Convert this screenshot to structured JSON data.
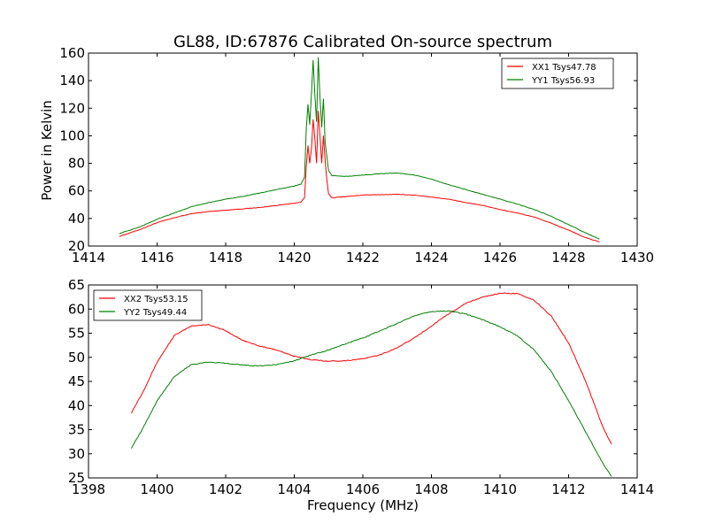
{
  "chart_data": [
    {
      "type": "line",
      "title": "GL88, ID:67876 Calibrated On-source spectrum",
      "xlabel": "",
      "ylabel": "Power in Kelvin",
      "xlim": [
        1414,
        1430
      ],
      "ylim": [
        20,
        160
      ],
      "xticks": [
        1414,
        1416,
        1418,
        1420,
        1422,
        1424,
        1426,
        1428,
        1430
      ],
      "yticks": [
        20,
        40,
        60,
        80,
        100,
        120,
        140,
        160
      ],
      "grid": false,
      "legend_position": "top-right",
      "series": [
        {
          "name": "XX1 Tsys47.78",
          "color": "#ff0000",
          "points": [
            [
              1414.9,
              27
            ],
            [
              1415.5,
              32
            ],
            [
              1416,
              37
            ],
            [
              1416.5,
              40.5
            ],
            [
              1417,
              43.5
            ],
            [
              1417.5,
              45
            ],
            [
              1418,
              46
            ],
            [
              1419,
              48
            ],
            [
              1419.5,
              49.5
            ],
            [
              1420,
              51
            ],
            [
              1420.2,
              52
            ],
            [
              1420.3,
              55
            ],
            [
              1420.35,
              78
            ],
            [
              1420.4,
              93
            ],
            [
              1420.45,
              80
            ],
            [
              1420.5,
              90
            ],
            [
              1420.55,
              112
            ],
            [
              1420.6,
              98
            ],
            [
              1420.65,
              80
            ],
            [
              1420.7,
              118
            ],
            [
              1420.75,
              100
            ],
            [
              1420.8,
              80
            ],
            [
              1420.85,
              100
            ],
            [
              1420.9,
              82
            ],
            [
              1420.95,
              68
            ],
            [
              1421,
              58
            ],
            [
              1421.1,
              55
            ],
            [
              1422,
              57
            ],
            [
              1423,
              57.5
            ],
            [
              1423.5,
              57
            ],
            [
              1424,
              55.5
            ],
            [
              1424.5,
              54
            ],
            [
              1425,
              51.5
            ],
            [
              1425.5,
              49.5
            ],
            [
              1426,
              46.5
            ],
            [
              1426.5,
              44
            ],
            [
              1427,
              41
            ],
            [
              1427.5,
              36.5
            ],
            [
              1428,
              31.5
            ],
            [
              1428.5,
              26
            ],
            [
              1428.9,
              23
            ]
          ]
        },
        {
          "name": "YY1 Tsys56.93",
          "color": "#008000",
          "points": [
            [
              1414.9,
              29
            ],
            [
              1415.5,
              34
            ],
            [
              1416,
              39.5
            ],
            [
              1416.5,
              44
            ],
            [
              1417,
              48.5
            ],
            [
              1417.5,
              51.5
            ],
            [
              1418,
              54
            ],
            [
              1418.5,
              56
            ],
            [
              1419,
              58.5
            ],
            [
              1419.5,
              61
            ],
            [
              1420,
              63.5
            ],
            [
              1420.2,
              65
            ],
            [
              1420.3,
              70
            ],
            [
              1420.35,
              105
            ],
            [
              1420.4,
              123
            ],
            [
              1420.45,
              108
            ],
            [
              1420.5,
              130
            ],
            [
              1420.55,
              155
            ],
            [
              1420.6,
              130
            ],
            [
              1420.65,
              110
            ],
            [
              1420.7,
              157
            ],
            [
              1420.75,
              128
            ],
            [
              1420.8,
              106
            ],
            [
              1420.85,
              127
            ],
            [
              1420.9,
              95
            ],
            [
              1420.95,
              85
            ],
            [
              1421,
              75
            ],
            [
              1421.1,
              71
            ],
            [
              1421.5,
              70.5
            ],
            [
              1422,
              71.5
            ],
            [
              1422.5,
              72.5
            ],
            [
              1423,
              73
            ],
            [
              1423.5,
              71.5
            ],
            [
              1424,
              68.5
            ],
            [
              1424.5,
              64.5
            ],
            [
              1425,
              61
            ],
            [
              1425.5,
              57.5
            ],
            [
              1426,
              54
            ],
            [
              1426.5,
              50.5
            ],
            [
              1427,
              46.5
            ],
            [
              1427.5,
              41.5
            ],
            [
              1428,
              35.5
            ],
            [
              1428.5,
              29.5
            ],
            [
              1428.9,
              25
            ]
          ]
        }
      ]
    },
    {
      "type": "line",
      "title": "",
      "xlabel": "Frequency (MHz)",
      "ylabel": "",
      "xlim": [
        1398,
        1414
      ],
      "ylim": [
        25,
        65
      ],
      "xticks": [
        1398,
        1400,
        1402,
        1404,
        1406,
        1408,
        1410,
        1412,
        1414
      ],
      "yticks": [
        25,
        30,
        35,
        40,
        45,
        50,
        55,
        60,
        65
      ],
      "grid": false,
      "legend_position": "top-left",
      "series": [
        {
          "name": "XX2 Tsys53.15",
          "color": "#ff0000",
          "points": [
            [
              1399.25,
              38.5
            ],
            [
              1399.6,
              43
            ],
            [
              1400,
              49
            ],
            [
              1400.5,
              54.5
            ],
            [
              1401,
              56.5
            ],
            [
              1401.5,
              56.8
            ],
            [
              1402,
              55.5
            ],
            [
              1402.5,
              53.5
            ],
            [
              1403,
              52.3
            ],
            [
              1403.5,
              51.5
            ],
            [
              1404,
              50.2
            ],
            [
              1404.5,
              49.5
            ],
            [
              1405,
              49.2
            ],
            [
              1405.5,
              49.3
            ],
            [
              1406,
              49.7
            ],
            [
              1406.5,
              50.5
            ],
            [
              1407,
              52
            ],
            [
              1407.5,
              54
            ],
            [
              1408,
              56.5
            ],
            [
              1408.5,
              59
            ],
            [
              1409,
              61.2
            ],
            [
              1409.5,
              62.5
            ],
            [
              1410,
              63.3
            ],
            [
              1410.5,
              63.2
            ],
            [
              1411,
              61.8
            ],
            [
              1411.5,
              58.5
            ],
            [
              1412,
              53
            ],
            [
              1412.5,
              45
            ],
            [
              1413,
              35.5
            ],
            [
              1413.25,
              32
            ]
          ]
        },
        {
          "name": "YY2 Tsys49.44",
          "color": "#008000",
          "points": [
            [
              1399.25,
              31.2
            ],
            [
              1399.6,
              35.5
            ],
            [
              1400,
              41
            ],
            [
              1400.5,
              46
            ],
            [
              1401,
              48.5
            ],
            [
              1401.5,
              49
            ],
            [
              1402,
              48.8
            ],
            [
              1402.5,
              48.4
            ],
            [
              1403,
              48.2
            ],
            [
              1403.5,
              48.5
            ],
            [
              1404,
              49.3
            ],
            [
              1404.5,
              50.5
            ],
            [
              1405,
              51.5
            ],
            [
              1405.5,
              52.8
            ],
            [
              1406,
              54
            ],
            [
              1406.5,
              55.5
            ],
            [
              1407,
              57
            ],
            [
              1407.5,
              58.6
            ],
            [
              1408,
              59.5
            ],
            [
              1408.5,
              59.6
            ],
            [
              1409,
              59
            ],
            [
              1409.5,
              57.8
            ],
            [
              1410,
              56.3
            ],
            [
              1410.5,
              54.5
            ],
            [
              1411,
              51.5
            ],
            [
              1411.5,
              47
            ],
            [
              1412,
              41
            ],
            [
              1412.5,
              34.5
            ],
            [
              1413,
              28
            ],
            [
              1413.25,
              25.3
            ]
          ]
        }
      ]
    }
  ]
}
